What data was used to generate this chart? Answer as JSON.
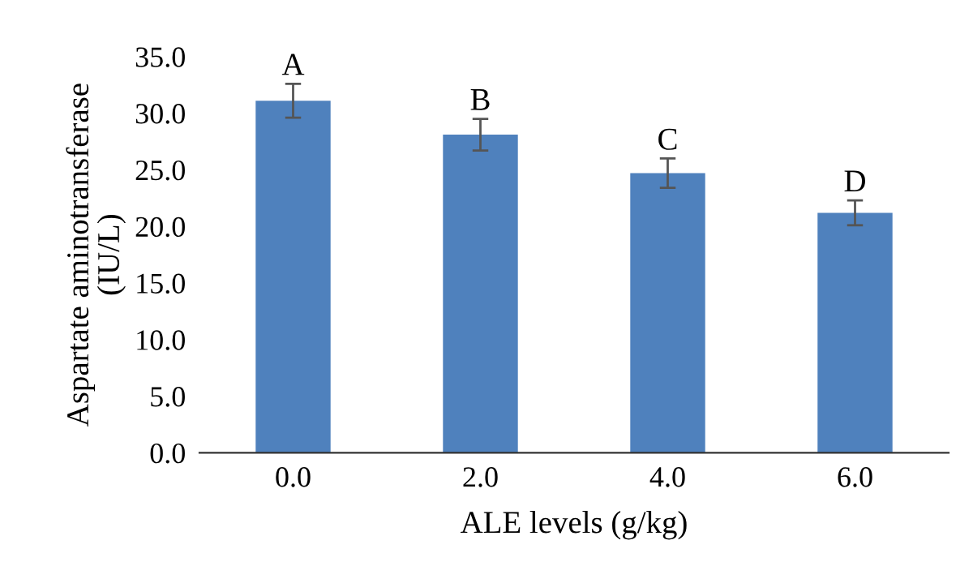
{
  "chart_data": {
    "type": "bar",
    "xlabel": "ALE levels (g/kg)",
    "ylabel": "Aspartate aminotransferase\n(IU/L)",
    "categories": [
      "0.0",
      "2.0",
      "4.0",
      "6.0"
    ],
    "values": [
      31.1,
      28.1,
      24.7,
      21.2
    ],
    "errors": [
      1.5,
      1.4,
      1.3,
      1.1
    ],
    "color": "#4f81bd",
    "ylim": [
      0,
      35
    ],
    "yticks": [
      {
        "value": 0,
        "label": "0.0"
      },
      {
        "value": 5,
        "label": "5.0"
      },
      {
        "value": 10,
        "label": "10.0"
      },
      {
        "value": 15,
        "label": "15.0"
      },
      {
        "value": 20,
        "label": "20.0"
      },
      {
        "value": 25,
        "label": "25.0"
      },
      {
        "value": 30,
        "label": "30.0"
      },
      {
        "value": 35,
        "label": "35.0"
      }
    ],
    "annotations": [
      {
        "text": "A",
        "x": "0.0",
        "y": 32.6
      },
      {
        "text": "B",
        "x": "2.0",
        "y": 29.5
      },
      {
        "text": "C",
        "x": "4.0",
        "y": 26.0
      },
      {
        "text": "D",
        "x": "6.0",
        "y": 22.3
      }
    ]
  }
}
